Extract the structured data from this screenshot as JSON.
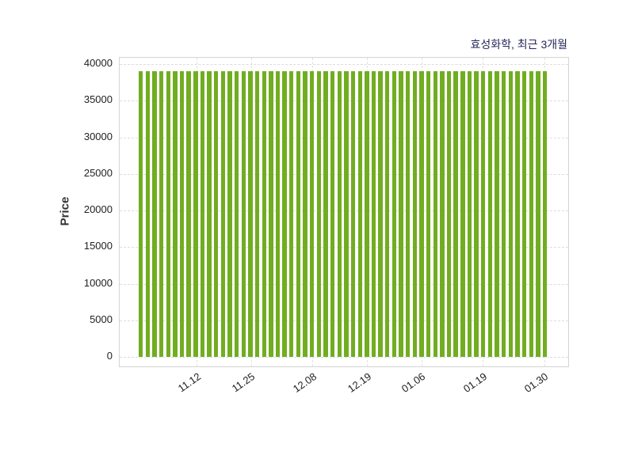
{
  "chart_data": {
    "type": "bar",
    "title": "효성화학, 최근 3개월",
    "xlabel": "",
    "ylabel": "Price",
    "ylim": [
      0,
      40000
    ],
    "y_ticks": [
      0,
      5000,
      10000,
      15000,
      20000,
      25000,
      30000,
      35000,
      40000
    ],
    "x_ticks": [
      {
        "index": 8,
        "label": "11.12"
      },
      {
        "index": 16,
        "label": "11.25"
      },
      {
        "index": 25,
        "label": "12.08"
      },
      {
        "index": 33,
        "label": "12.19"
      },
      {
        "index": 41,
        "label": "01.06"
      },
      {
        "index": 50,
        "label": "01.19"
      },
      {
        "index": 59,
        "label": "01.30"
      }
    ],
    "n_bars": 60,
    "values": [
      39000,
      39000,
      39000,
      39000,
      39000,
      39000,
      39000,
      39000,
      39000,
      39000,
      39000,
      39000,
      39000,
      39000,
      39000,
      39000,
      39000,
      39000,
      39000,
      39000,
      39000,
      39000,
      39000,
      39000,
      39000,
      39000,
      39000,
      39000,
      39000,
      39000,
      39000,
      39000,
      39000,
      39000,
      39000,
      39000,
      39000,
      39000,
      39000,
      39000,
      39000,
      39000,
      39000,
      39000,
      39000,
      39000,
      39000,
      39000,
      39000,
      39000,
      39000,
      39000,
      39000,
      39000,
      39000,
      39000,
      39000,
      39000,
      39000,
      39000
    ],
    "bar_color": "#71ad21",
    "grid": true,
    "legend": "none",
    "colors": {
      "title": "#26265a",
      "axis_text": "#222222",
      "gridline": "#dcdcdc",
      "plot_border": "#d4d4d4",
      "background": "#ffffff"
    }
  }
}
